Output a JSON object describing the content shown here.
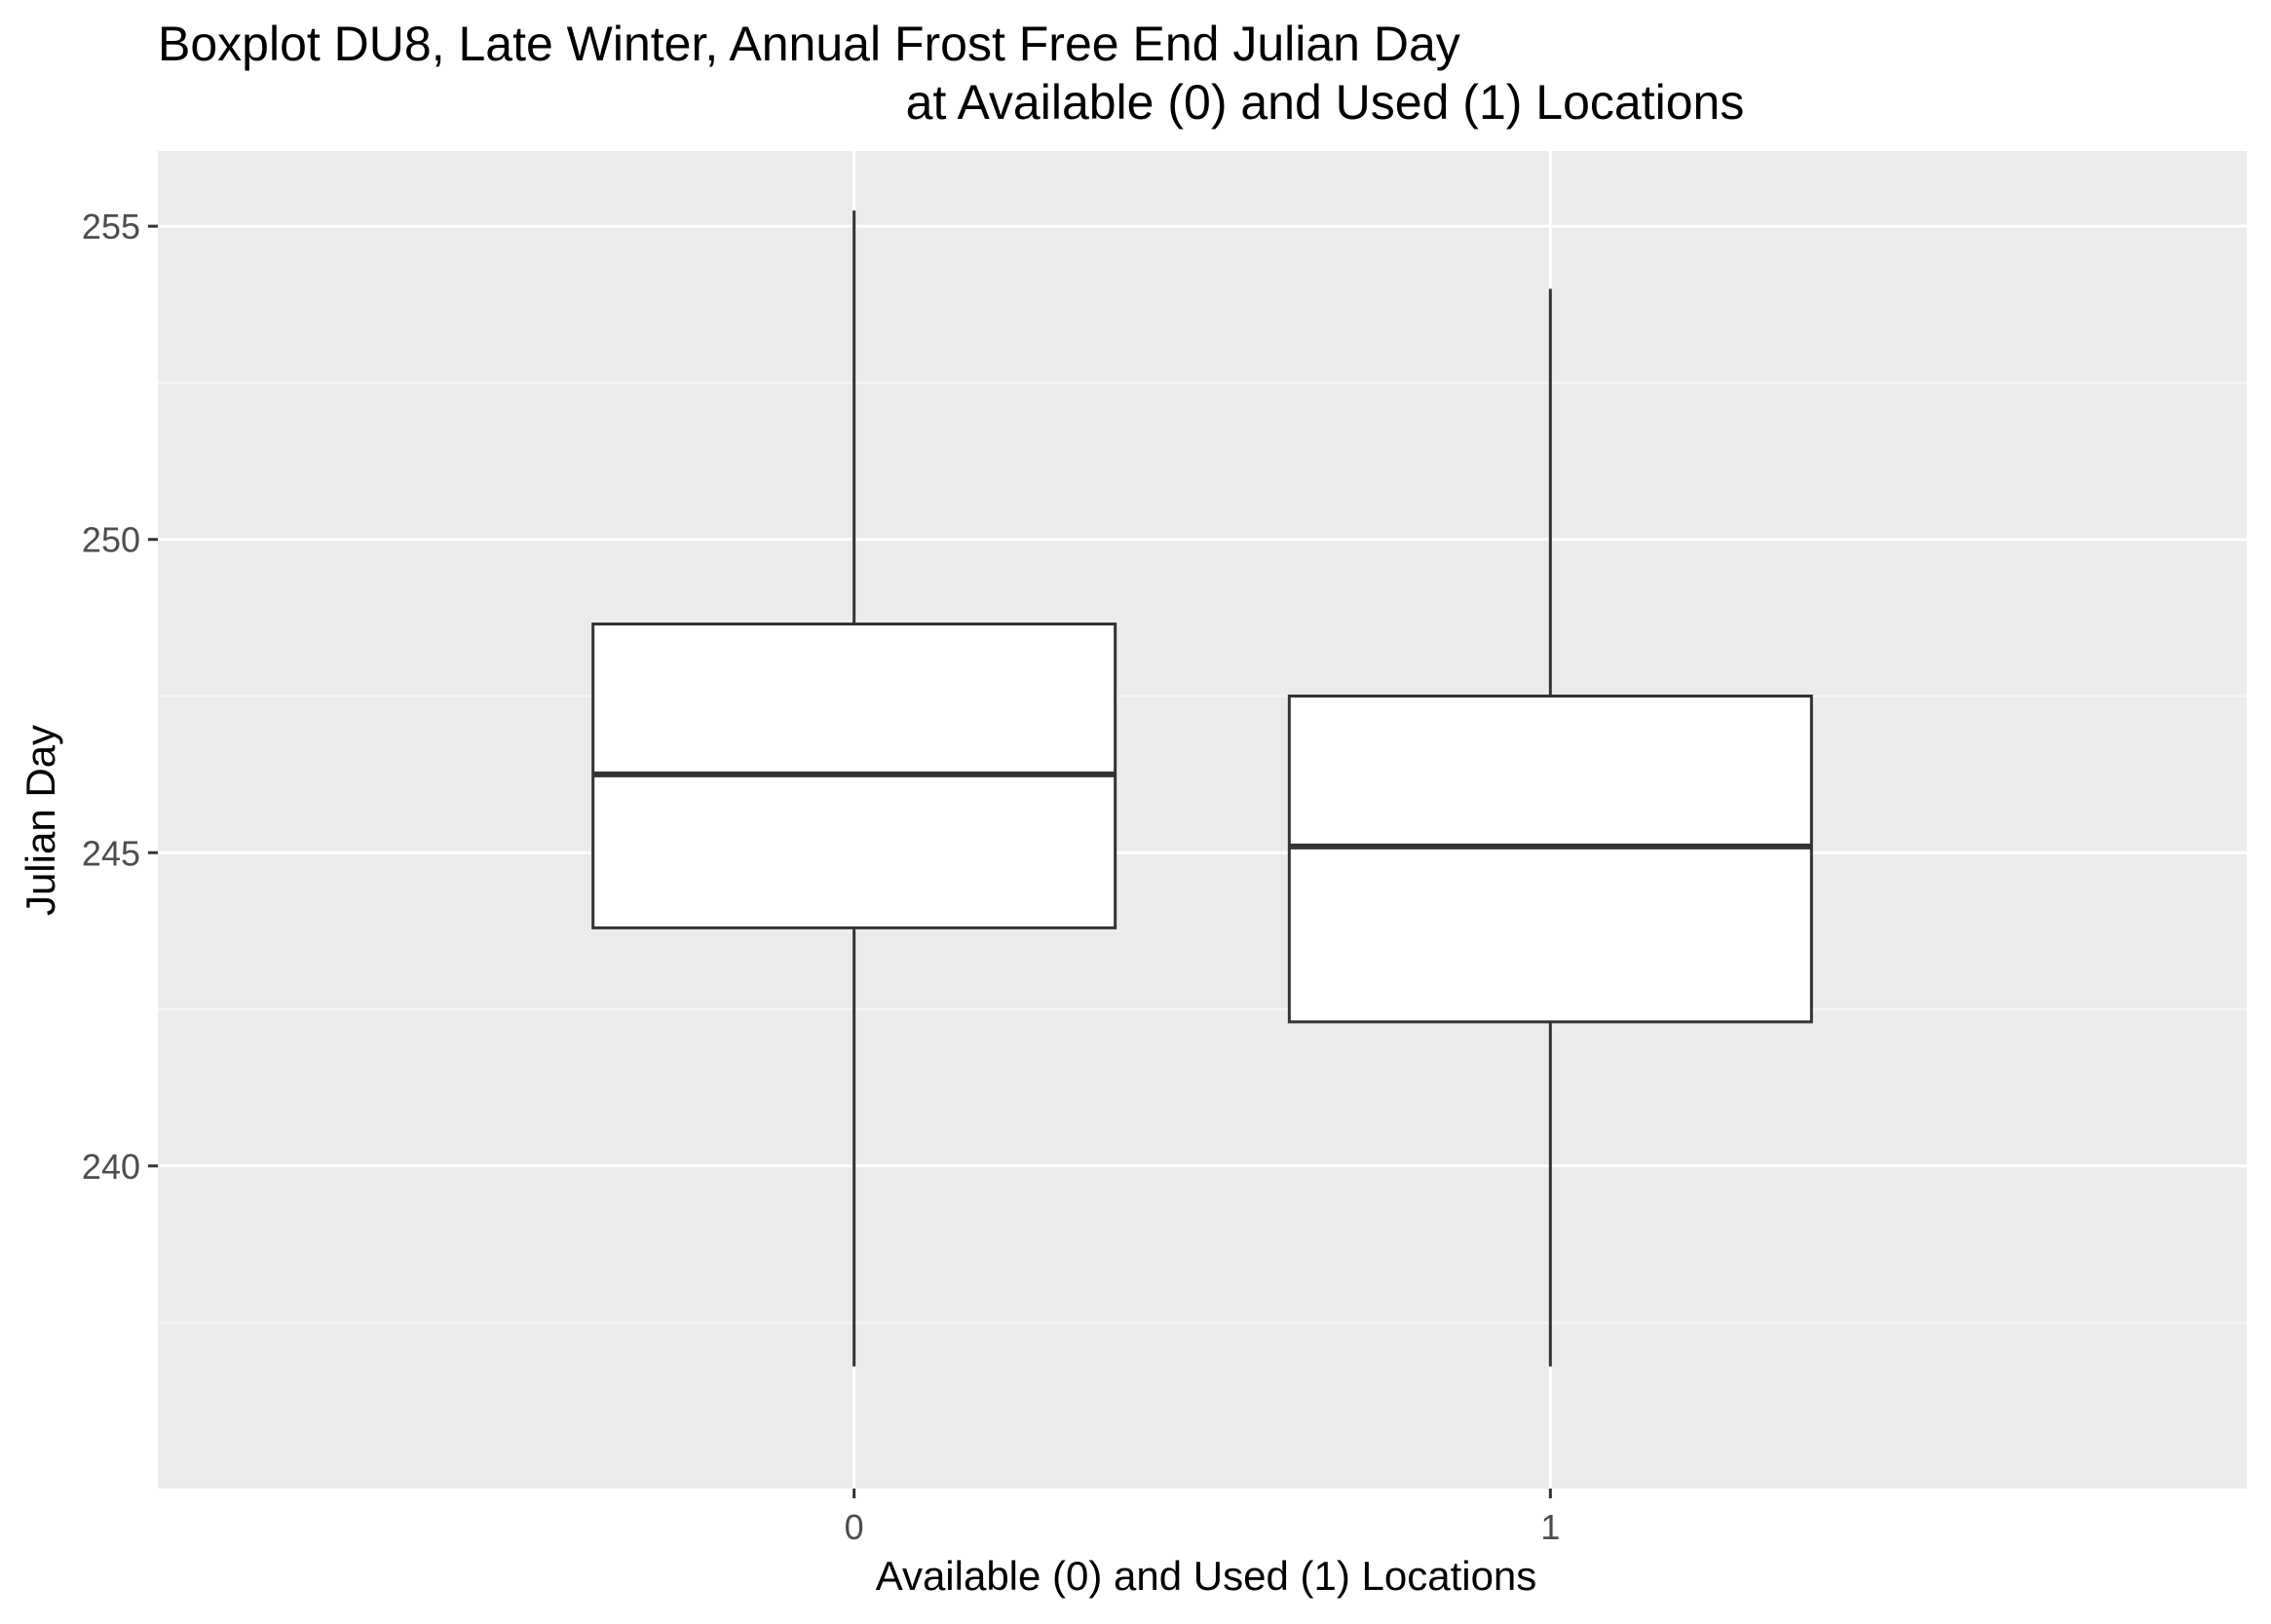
{
  "chart_data": {
    "type": "boxplot",
    "title": "Boxplot DU8, Late Winter, Annual Frost Free End Julian Day",
    "subtitle": "at Available (0) and Used (1) Locations",
    "xlabel": "Available (0) and Used (1) Locations",
    "ylabel": "Julian Day",
    "categories": [
      "0",
      "1"
    ],
    "boxes": [
      {
        "category": "0",
        "lower_whisker": 236.8,
        "q1": 243.8,
        "median": 246.25,
        "q3": 248.65,
        "upper_whisker": 255.25
      },
      {
        "category": "1",
        "lower_whisker": 236.8,
        "q1": 242.3,
        "median": 245.1,
        "q3": 247.5,
        "upper_whisker": 254.0
      }
    ],
    "ylim": [
      234.85,
      256.2
    ],
    "yticks": [
      240,
      245,
      250,
      255
    ],
    "ytick_labels": [
      "240",
      "245",
      "250",
      "255"
    ],
    "grid": true,
    "colors": {
      "panel_background": "#ebebeb",
      "grid_major": "#ffffff",
      "grid_minor": "#f7f7f7",
      "box_fill": "#ffffff",
      "box_stroke": "#333333",
      "tick_label": "#4d4d4d",
      "text": "#000000"
    }
  }
}
